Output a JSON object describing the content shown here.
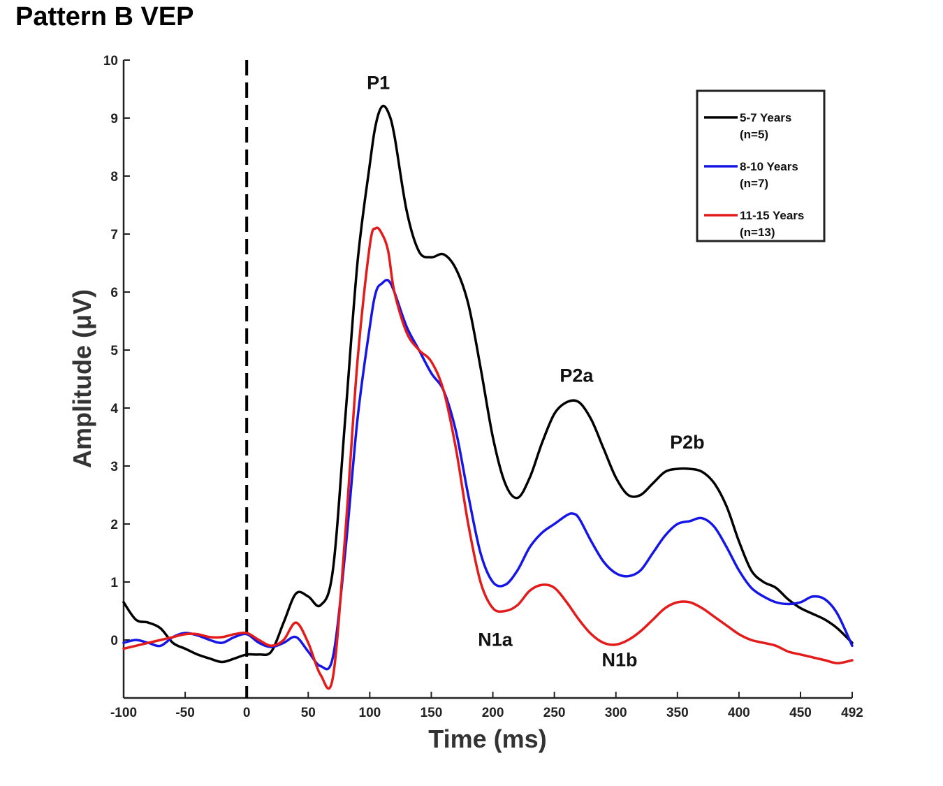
{
  "chart_data": {
    "type": "line",
    "title": "Pattern B VEP",
    "xlabel": "Time (ms)",
    "ylabel": "Amplitude (μV)",
    "xlim": [
      -100,
      492
    ],
    "ylim": [
      -1,
      10
    ],
    "xticks": [
      "-100",
      "-50",
      "0",
      "50",
      "100",
      "150",
      "200",
      "250",
      "300",
      "350",
      "400",
      "450",
      "492"
    ],
    "xtick_values": [
      -100,
      -50,
      0,
      50,
      100,
      150,
      200,
      250,
      300,
      350,
      400,
      450,
      492
    ],
    "yticks": [
      "0",
      "1",
      "2",
      "3",
      "4",
      "5",
      "6",
      "7",
      "8",
      "9",
      "10"
    ],
    "ytick_values": [
      0,
      1,
      2,
      3,
      4,
      5,
      6,
      7,
      8,
      9,
      10
    ],
    "stimulus_onset": 0,
    "legend_position": "top-right",
    "series": [
      {
        "name": "5-7 Years",
        "name_line2": "(n=5)",
        "color": "#000000",
        "x": [
          -100,
          -90,
          -80,
          -70,
          -60,
          -50,
          -40,
          -30,
          -20,
          -10,
          0,
          10,
          20,
          30,
          40,
          50,
          60,
          70,
          80,
          90,
          100,
          105,
          110,
          115,
          120,
          130,
          140,
          150,
          160,
          170,
          180,
          190,
          200,
          210,
          220,
          230,
          240,
          250,
          260,
          270,
          280,
          290,
          300,
          310,
          320,
          330,
          340,
          350,
          360,
          370,
          380,
          390,
          400,
          410,
          420,
          430,
          440,
          450,
          460,
          470,
          480,
          492
        ],
        "y": [
          0.65,
          0.35,
          0.3,
          0.2,
          -0.05,
          -0.15,
          -0.25,
          -0.32,
          -0.38,
          -0.32,
          -0.25,
          -0.25,
          -0.2,
          0.3,
          0.8,
          0.75,
          0.6,
          1.2,
          3.8,
          6.5,
          8.2,
          8.9,
          9.2,
          9.1,
          8.7,
          7.4,
          6.7,
          6.6,
          6.65,
          6.4,
          5.8,
          4.7,
          3.5,
          2.7,
          2.45,
          2.8,
          3.4,
          3.9,
          4.1,
          4.1,
          3.8,
          3.3,
          2.8,
          2.5,
          2.5,
          2.7,
          2.9,
          2.95,
          2.95,
          2.9,
          2.7,
          2.3,
          1.7,
          1.2,
          1.0,
          0.9,
          0.7,
          0.55,
          0.45,
          0.35,
          0.2,
          -0.05
        ]
      },
      {
        "name": "8-10 Years",
        "name_line2": "(n=7)",
        "color": "#1515e6",
        "x": [
          -100,
          -90,
          -80,
          -70,
          -60,
          -50,
          -40,
          -30,
          -20,
          -10,
          0,
          10,
          20,
          30,
          40,
          50,
          60,
          70,
          80,
          90,
          100,
          105,
          110,
          115,
          120,
          130,
          140,
          150,
          160,
          170,
          180,
          190,
          200,
          210,
          220,
          230,
          240,
          250,
          260,
          265,
          270,
          280,
          290,
          300,
          310,
          320,
          330,
          340,
          350,
          360,
          370,
          380,
          390,
          400,
          410,
          420,
          430,
          440,
          450,
          460,
          470,
          480,
          492
        ],
        "y": [
          -0.05,
          0.0,
          -0.05,
          -0.1,
          0.05,
          0.12,
          0.08,
          0.0,
          -0.05,
          0.05,
          0.1,
          -0.05,
          -0.12,
          -0.05,
          0.05,
          -0.2,
          -0.45,
          -0.3,
          1.5,
          3.8,
          5.4,
          6.0,
          6.15,
          6.2,
          6.0,
          5.4,
          5.0,
          4.6,
          4.3,
          3.6,
          2.5,
          1.5,
          1.0,
          0.95,
          1.2,
          1.6,
          1.85,
          2.0,
          2.15,
          2.18,
          2.1,
          1.7,
          1.35,
          1.15,
          1.1,
          1.2,
          1.5,
          1.8,
          2.0,
          2.05,
          2.1,
          1.95,
          1.6,
          1.2,
          0.9,
          0.75,
          0.65,
          0.62,
          0.65,
          0.75,
          0.7,
          0.45,
          -0.1
        ]
      },
      {
        "name": "11-15 Years",
        "name_line2": "(n=13)",
        "color": "#e31b1b",
        "x": [
          -100,
          -90,
          -80,
          -70,
          -60,
          -50,
          -40,
          -30,
          -20,
          -10,
          0,
          10,
          20,
          30,
          40,
          50,
          60,
          70,
          80,
          90,
          100,
          105,
          110,
          115,
          120,
          130,
          140,
          150,
          160,
          170,
          180,
          190,
          200,
          210,
          220,
          230,
          240,
          250,
          260,
          270,
          280,
          290,
          300,
          310,
          320,
          330,
          340,
          350,
          360,
          370,
          380,
          390,
          400,
          410,
          420,
          430,
          440,
          450,
          460,
          470,
          480,
          492
        ],
        "y": [
          -0.15,
          -0.1,
          -0.05,
          0.0,
          0.05,
          0.1,
          0.1,
          0.05,
          0.05,
          0.1,
          0.12,
          0.0,
          -0.1,
          0.0,
          0.3,
          -0.05,
          -0.6,
          -0.65,
          1.8,
          4.8,
          6.8,
          7.1,
          7.0,
          6.7,
          6.0,
          5.3,
          5.0,
          4.8,
          4.3,
          3.3,
          2.0,
          1.0,
          0.55,
          0.5,
          0.6,
          0.85,
          0.95,
          0.9,
          0.65,
          0.35,
          0.1,
          -0.05,
          -0.08,
          0.0,
          0.15,
          0.35,
          0.55,
          0.65,
          0.65,
          0.55,
          0.4,
          0.25,
          0.1,
          0.0,
          -0.05,
          -0.1,
          -0.2,
          -0.25,
          -0.3,
          -0.35,
          -0.4,
          -0.35
        ]
      }
    ],
    "annotations": [
      {
        "text": "P1",
        "x": 107,
        "y": 9.5
      },
      {
        "text": "P2a",
        "x": 268,
        "y": 4.45
      },
      {
        "text": "P2b",
        "x": 358,
        "y": 3.3
      },
      {
        "text": "N1a",
        "x": 202,
        "y": -0.1
      },
      {
        "text": "N1b",
        "x": 303,
        "y": -0.45
      }
    ]
  }
}
